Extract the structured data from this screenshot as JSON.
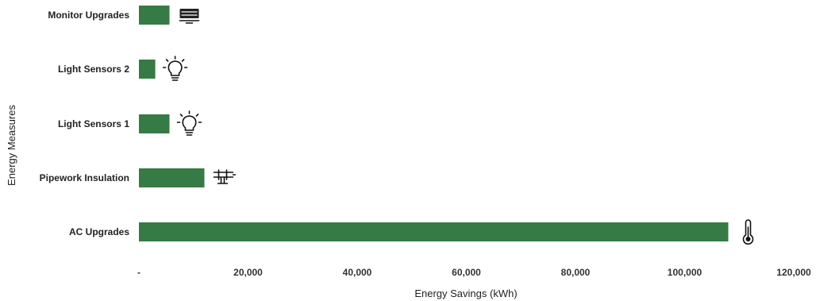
{
  "chart_data": {
    "type": "bar",
    "orientation": "horizontal",
    "categories": [
      "AC Upgrades",
      "Pipework Insulation",
      "Light Sensors 1",
      "Light Sensors 2",
      "Monitor Upgrades"
    ],
    "values": [
      108000,
      12000,
      5600,
      3000,
      5600
    ],
    "icons": [
      "thermometer-icon",
      "pipe-icon",
      "lightbulb-icon",
      "lightbulb-icon",
      "monitor-icon"
    ],
    "bar_color": "#367a45",
    "xlabel": "Energy Savings (kWh)",
    "ylabel": "Energy Measures",
    "xlim": [
      0,
      120000
    ],
    "x_ticks": [
      {
        "value": 0,
        "label": "-"
      },
      {
        "value": 20000,
        "label": "20,000"
      },
      {
        "value": 40000,
        "label": "40,000"
      },
      {
        "value": 60000,
        "label": "60,000"
      },
      {
        "value": 80000,
        "label": "80,000"
      },
      {
        "value": 100000,
        "label": "100,000"
      },
      {
        "value": 120000,
        "label": "120,000"
      }
    ],
    "grid": false,
    "legend": "none"
  }
}
